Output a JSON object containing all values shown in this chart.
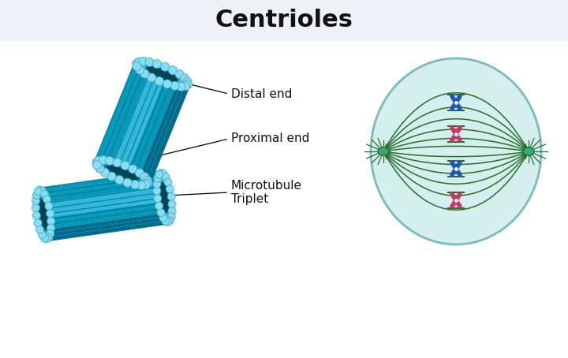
{
  "title": "Centrioles",
  "title_fontsize": 22,
  "title_bg": "#eef1f8",
  "bg_color": "#ffffff",
  "label_distal": "Distal end",
  "label_proximal": "Proximal end",
  "label_microtubule": "Microtubule\nTriplet",
  "label_fontsize": 11,
  "dark_teal": "#006a8a",
  "mid_teal": "#0099bb",
  "light_teal": "#33bbdd",
  "very_light_teal": "#55ccee",
  "bead_fill": "#88ddee",
  "bead_edge": "#44aacc",
  "hollow_dark": "#004455",
  "cell_bg": "#d5eeee",
  "cell_border": "#7abcbc",
  "spindle_color": "#2a6e2a",
  "aster_color": "#2a6e2a",
  "centrosome_fill": "#3aaa70",
  "centrosome_edge": "#1a7a50",
  "chrom_blue": "#2255bb",
  "chrom_pink": "#cc3366",
  "annot_color": "#111111"
}
